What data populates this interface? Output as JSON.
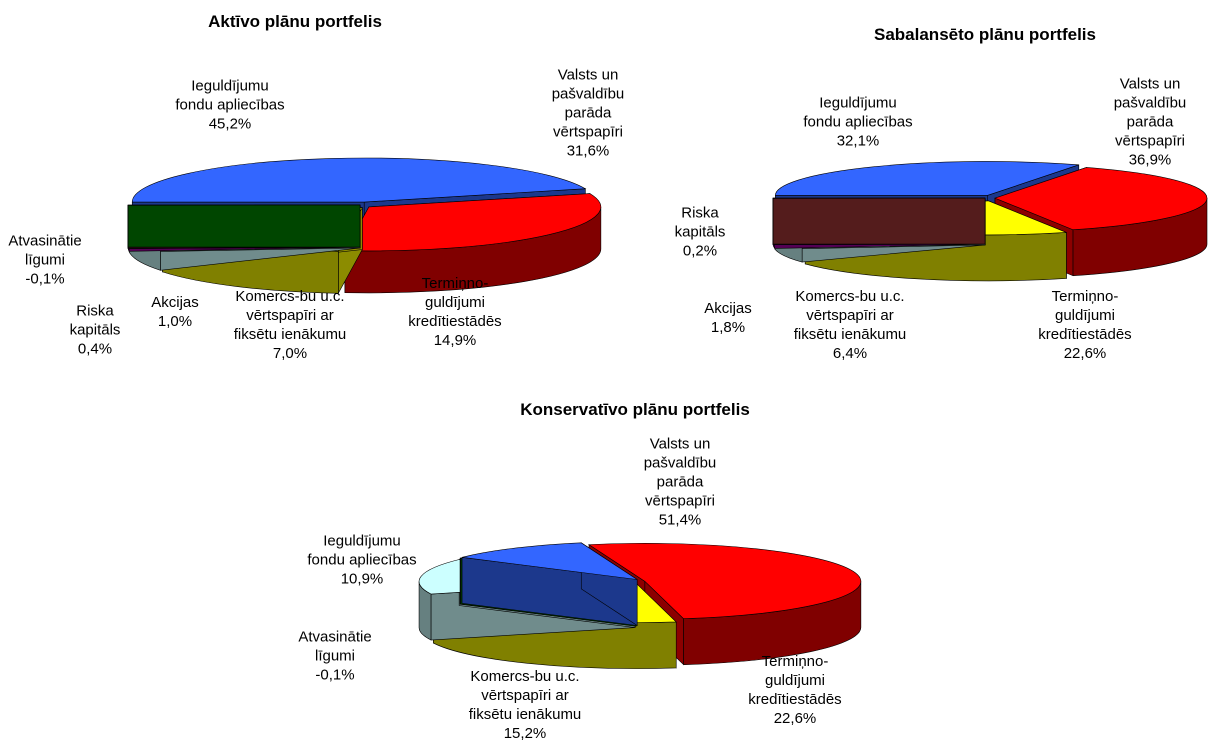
{
  "chart_data": [
    {
      "type": "pie3d",
      "title": "Aktīvo plānu portfelis",
      "categories": [
        "Ieguldījumu fondu apliecības",
        "Valsts un pašvaldību parāda vērtspapīri",
        "Termiņno-guldījumi kredītiestādēs",
        "Komercs-bu u.c. vērtspapīri ar fiksētu ienākumu",
        "Akcijas",
        "Riska kapitāls",
        "Atvasinātie līgumi"
      ],
      "values": [
        45.2,
        31.6,
        14.9,
        7.0,
        1.0,
        0.4,
        -0.1
      ],
      "value_labels": [
        "45,2%",
        "31,6%",
        "14,9%",
        "7,0%",
        "1,0%",
        "0,4%",
        "-0,1%"
      ],
      "colors": [
        "#3366ff",
        "#ff0000",
        "#ffff00",
        "#ccffff",
        "#990099",
        "#993333",
        "#008000"
      ]
    },
    {
      "type": "pie3d",
      "title": "Sabalansēto plānu portfelis",
      "categories": [
        "Ieguldījumu fondu apliecības",
        "Valsts un pašvaldību parāda vērtspapīri",
        "Termiņno-guldījumi kredītiestādēs",
        "Komercs-bu u.c. vērtspapīri ar fiksētu ienākumu",
        "Akcijas",
        "Riska kapitāls"
      ],
      "values": [
        32.1,
        36.9,
        22.6,
        6.4,
        1.8,
        0.2
      ],
      "value_labels": [
        "32,1%",
        "36,9%",
        "22,6%",
        "6,4%",
        "1,8%",
        "0,2%"
      ],
      "colors": [
        "#3366ff",
        "#ff0000",
        "#ffff00",
        "#ccffff",
        "#990099",
        "#993333"
      ]
    },
    {
      "type": "pie3d",
      "title": "Konservatīvo plānu portfelis",
      "categories": [
        "Valsts un pašvaldību parāda vērtspapīri",
        "Termiņno-guldījumi kredītiestādēs",
        "Komercs-bu u.c. vērtspapīri ar fiksētu ienākumu",
        "Atvasinātie līgumi",
        "Ieguldījumu fondu apliecības"
      ],
      "values": [
        51.4,
        22.6,
        15.2,
        -0.1,
        10.9
      ],
      "value_labels": [
        "51,4%",
        "22,6%",
        "15,2%",
        "-0,1%",
        "10,9%"
      ],
      "colors": [
        "#ff0000",
        "#ffff00",
        "#ccffff",
        "#008000",
        "#3366ff"
      ]
    }
  ]
}
